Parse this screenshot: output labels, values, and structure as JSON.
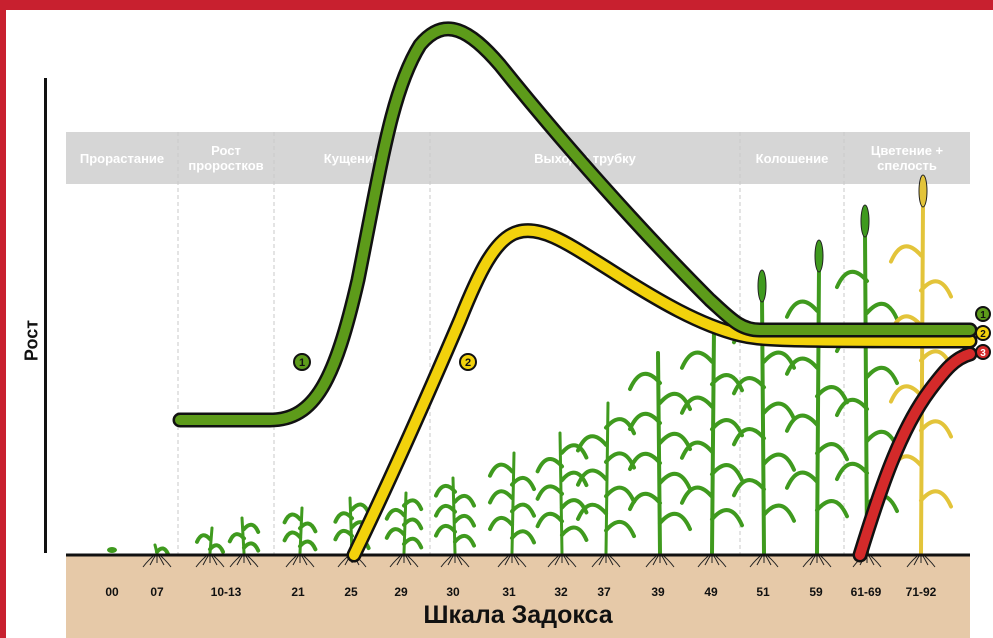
{
  "y_axis_label": "Рост",
  "scale_title": "Шкала Задокса",
  "stages": [
    "Прорастание",
    "Рост\nпроростков",
    "Кущение",
    "Выход в трубку",
    "Колошение",
    "Цветение +\nспелость"
  ],
  "codes": [
    "00",
    "07",
    "10-13",
    "21",
    "25",
    "29",
    "30",
    "31",
    "32",
    "37",
    "39",
    "49",
    "51",
    "59",
    "61-69",
    "71-92"
  ],
  "curves": [
    {
      "label": "1",
      "color": "#5d9b1a"
    },
    {
      "label": "2",
      "color": "#f2d20c"
    },
    {
      "label": "3",
      "color": "#d42a2a"
    }
  ],
  "colors": {
    "frame": "#c8202f",
    "soil": "#e6c9a8",
    "header": "#d6d6d6",
    "plant": "#3f9a1e",
    "mature_plant": "#e3c43a"
  }
}
